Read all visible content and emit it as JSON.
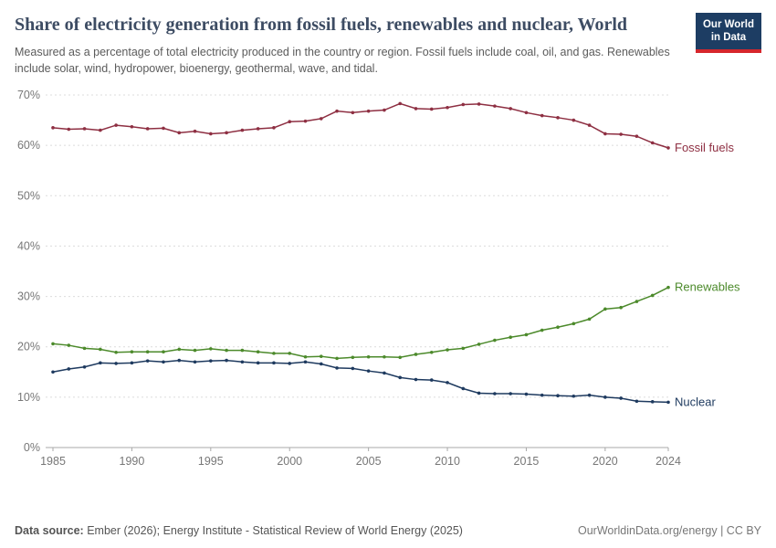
{
  "header": {
    "title": "Share of electricity generation from fossil fuels, renewables and nuclear, World",
    "subtitle": "Measured as a percentage of total electricity produced in the country or region. Fossil fuels include coal, oil, and gas. Renewables include solar, wind, hydropower, bioenergy, geothermal, wave, and tidal.",
    "logo": {
      "line1": "Our World",
      "line2": "in Data",
      "bg_color": "#1d3d63",
      "accent_color": "#d6262c"
    }
  },
  "chart_data": {
    "type": "line",
    "title": "Share of electricity generation from fossil fuels, renewables and nuclear, World",
    "xlabel": "",
    "ylabel": "",
    "ylim": [
      0,
      70
    ],
    "yticks": [
      0,
      10,
      20,
      30,
      40,
      50,
      60,
      70
    ],
    "ytick_suffix": "%",
    "xticks": [
      1985,
      1990,
      1995,
      2000,
      2005,
      2010,
      2015,
      2020,
      2024
    ],
    "grid": "horizontal-dashed",
    "legend_position": "end-of-line-labels",
    "x": [
      1985,
      1986,
      1987,
      1988,
      1989,
      1990,
      1991,
      1992,
      1993,
      1994,
      1995,
      1996,
      1997,
      1998,
      1999,
      2000,
      2001,
      2002,
      2003,
      2004,
      2005,
      2006,
      2007,
      2008,
      2009,
      2010,
      2011,
      2012,
      2013,
      2014,
      2015,
      2016,
      2017,
      2018,
      2019,
      2020,
      2021,
      2022,
      2023,
      2024
    ],
    "series": [
      {
        "name": "Fossil fuels",
        "color": "#8e2f42",
        "values": [
          63.5,
          63.2,
          63.3,
          63.0,
          64.0,
          63.7,
          63.3,
          63.4,
          62.5,
          62.8,
          62.3,
          62.5,
          63.0,
          63.3,
          63.5,
          64.7,
          64.8,
          65.3,
          66.8,
          66.5,
          66.8,
          67.0,
          68.3,
          67.3,
          67.2,
          67.5,
          68.1,
          68.2,
          67.8,
          67.3,
          66.5,
          65.9,
          65.5,
          65.0,
          64.0,
          62.3,
          62.2,
          61.8,
          60.5,
          59.5
        ]
      },
      {
        "name": "Renewables",
        "color": "#4c8a2b",
        "values": [
          20.6,
          20.3,
          19.7,
          19.5,
          18.9,
          19.0,
          19.0,
          19.0,
          19.5,
          19.3,
          19.6,
          19.3,
          19.3,
          19.0,
          18.7,
          18.7,
          18.0,
          18.1,
          17.7,
          17.9,
          18.0,
          18.0,
          17.9,
          18.5,
          18.9,
          19.4,
          19.7,
          20.5,
          21.3,
          21.9,
          22.4,
          23.3,
          23.9,
          24.6,
          25.5,
          27.5,
          27.8,
          29.0,
          30.2,
          31.8
        ]
      },
      {
        "name": "Nuclear",
        "color": "#1e3a5f",
        "values": [
          15.0,
          15.6,
          16.0,
          16.8,
          16.7,
          16.8,
          17.2,
          17.0,
          17.3,
          17.0,
          17.2,
          17.3,
          17.0,
          16.8,
          16.8,
          16.7,
          17.0,
          16.6,
          15.8,
          15.7,
          15.2,
          14.8,
          13.9,
          13.5,
          13.4,
          12.9,
          11.7,
          10.8,
          10.7,
          10.7,
          10.6,
          10.4,
          10.3,
          10.2,
          10.4,
          10.0,
          9.8,
          9.2,
          9.1,
          9.0
        ]
      }
    ]
  },
  "footer": {
    "source_label": "Data source:",
    "source_text": " Ember (2026); Energy Institute - Statistical Review of World Energy (2025)",
    "right_text": "OurWorldinData.org/energy | CC BY"
  }
}
